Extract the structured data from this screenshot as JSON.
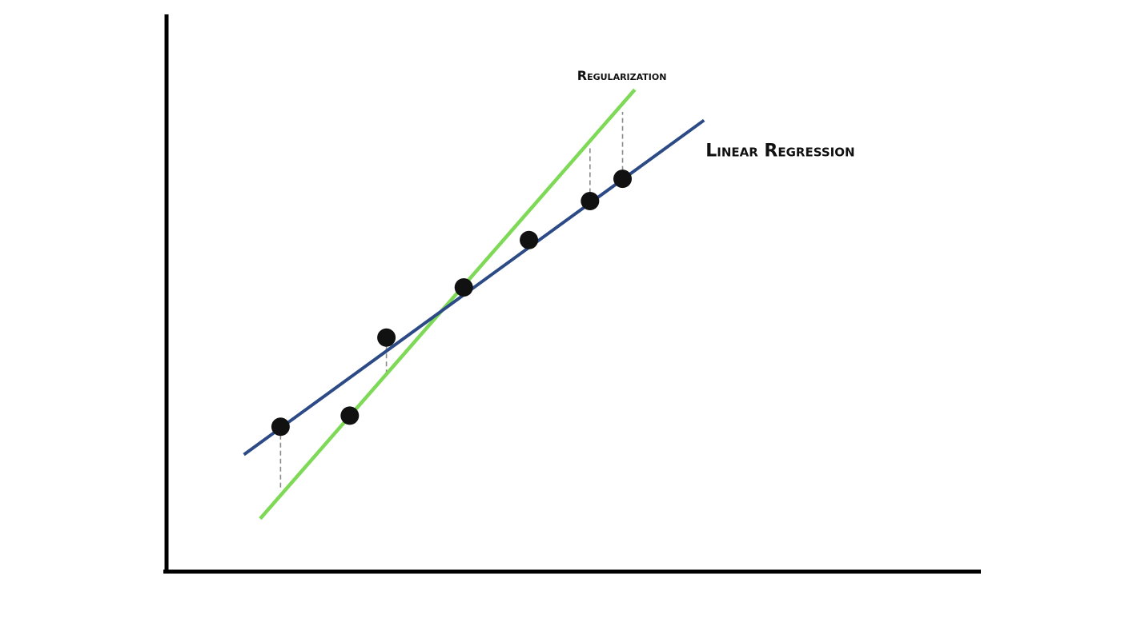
{
  "chart_data": {
    "type": "scatter",
    "title": "",
    "xlabel": "",
    "ylabel": "",
    "xlim": [
      0,
      10
    ],
    "ylim": [
      0,
      10
    ],
    "grid": false,
    "points": [
      {
        "x": 1.4,
        "y": 2.6
      },
      {
        "x": 2.25,
        "y": 2.8
      },
      {
        "x": 2.7,
        "y": 4.2
      },
      {
        "x": 3.65,
        "y": 5.1
      },
      {
        "x": 4.45,
        "y": 5.95
      },
      {
        "x": 5.2,
        "y": 6.65
      },
      {
        "x": 5.6,
        "y": 7.05
      }
    ],
    "series": [
      {
        "name": "Linear Regression",
        "type": "line",
        "color": "#2c4a86",
        "x": [
          0.95,
          6.6
        ],
        "y": [
          2.1,
          8.1
        ]
      },
      {
        "name": "Regularization",
        "type": "line",
        "color": "#7ed957",
        "x": [
          1.15,
          5.75
        ],
        "y": [
          0.95,
          8.65
        ]
      }
    ],
    "residuals": [
      {
        "x": 1.4,
        "y_from": 2.6,
        "y_to": 1.45
      },
      {
        "x": 2.7,
        "y_from": 4.2,
        "y_to": 3.55
      },
      {
        "x": 5.2,
        "y_from": 6.65,
        "y_to": 7.6
      },
      {
        "x": 5.6,
        "y_from": 7.05,
        "y_to": 8.25
      }
    ],
    "colors": {
      "axis": "#000000",
      "point": "#111111",
      "residual": "#8a8a8a",
      "text": "#111111"
    }
  }
}
